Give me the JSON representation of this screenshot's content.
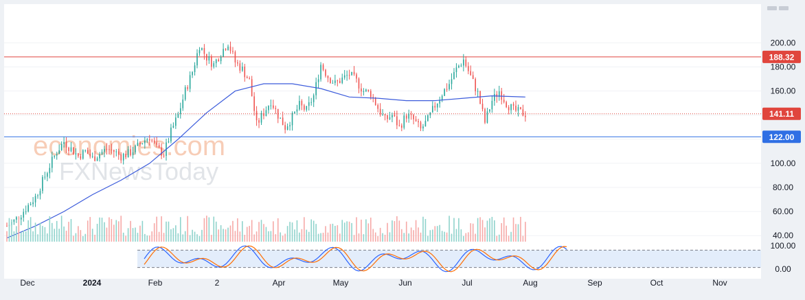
{
  "chart_data": {
    "type": "candlestick",
    "title": "",
    "y_ticks": [
      200,
      180,
      160,
      140,
      120,
      100,
      80,
      60,
      40
    ],
    "y_tick_labels": [
      "200.00",
      "180.00",
      "160.00",
      "",
      "",
      "100.00",
      "80.00",
      "60.00",
      "40.00"
    ],
    "ylim": [
      35,
      215
    ],
    "x_ticks": [
      "Dec",
      "2024",
      "Feb",
      "2",
      "Apr",
      "May",
      "Jun",
      "Jul",
      "Aug",
      "Sep",
      "Oct",
      "Nov"
    ],
    "price_lines": [
      {
        "value": 188.32,
        "label": "188.32",
        "color": "#e0453d"
      },
      {
        "value": 141.11,
        "label": "141.11",
        "color": "#e0453d",
        "style": "dotted"
      },
      {
        "value": 122.0,
        "label": "122.00",
        "color": "#2f6fe4"
      }
    ],
    "series": [
      {
        "name": "",
        "type": "candlestick",
        "approx_points": [
          [
            0,
            48
          ],
          [
            6,
            52
          ],
          [
            12,
            58
          ],
          [
            18,
            65
          ],
          [
            24,
            72
          ],
          [
            30,
            85
          ],
          [
            36,
            98
          ],
          [
            42,
            110
          ],
          [
            48,
            118
          ],
          [
            54,
            112
          ],
          [
            60,
            106
          ],
          [
            66,
            110
          ],
          [
            72,
            104
          ],
          [
            78,
            108
          ],
          [
            84,
            112
          ],
          [
            90,
            110
          ],
          [
            96,
            106
          ],
          [
            102,
            108
          ],
          [
            108,
            112
          ],
          [
            114,
            118
          ],
          [
            120,
            122
          ],
          [
            126,
            112
          ],
          [
            132,
            108
          ],
          [
            138,
            126
          ],
          [
            144,
            140
          ],
          [
            150,
            160
          ],
          [
            156,
            176
          ],
          [
            162,
            198
          ],
          [
            168,
            188
          ],
          [
            174,
            182
          ],
          [
            180,
            192
          ],
          [
            186,
            200
          ],
          [
            192,
            184
          ],
          [
            198,
            178
          ],
          [
            204,
            168
          ],
          [
            210,
            132
          ],
          [
            216,
            142
          ],
          [
            222,
            152
          ],
          [
            228,
            140
          ],
          [
            234,
            130
          ],
          [
            240,
            138
          ],
          [
            246,
            148
          ],
          [
            252,
            144
          ],
          [
            258,
            156
          ],
          [
            264,
            182
          ],
          [
            270,
            172
          ],
          [
            276,
            166
          ],
          [
            282,
            170
          ],
          [
            288,
            174
          ],
          [
            294,
            168
          ],
          [
            300,
            160
          ],
          [
            306,
            158
          ],
          [
            312,
            146
          ],
          [
            318,
            136
          ],
          [
            324,
            140
          ],
          [
            330,
            130
          ],
          [
            336,
            140
          ],
          [
            342,
            136
          ],
          [
            348,
            128
          ],
          [
            354,
            136
          ],
          [
            360,
            148
          ],
          [
            366,
            158
          ],
          [
            372,
            166
          ],
          [
            378,
            178
          ],
          [
            384,
            186
          ],
          [
            390,
            172
          ],
          [
            396,
            158
          ],
          [
            402,
            134
          ],
          [
            408,
            152
          ],
          [
            414,
            160
          ],
          [
            420,
            150
          ],
          [
            426,
            144
          ],
          [
            432,
            142
          ],
          [
            436,
            141
          ]
        ]
      },
      {
        "name": "",
        "type": "moving-average",
        "color": "#3b5bdb",
        "approx_points": [
          [
            0,
            38
          ],
          [
            24,
            48
          ],
          [
            48,
            60
          ],
          [
            72,
            74
          ],
          [
            96,
            86
          ],
          [
            120,
            100
          ],
          [
            144,
            120
          ],
          [
            168,
            142
          ],
          [
            192,
            160
          ],
          [
            216,
            166
          ],
          [
            240,
            166
          ],
          [
            264,
            162
          ],
          [
            288,
            155
          ],
          [
            312,
            154
          ],
          [
            336,
            152
          ],
          [
            360,
            152
          ],
          [
            384,
            154
          ],
          [
            408,
            156
          ],
          [
            436,
            155
          ]
        ]
      }
    ],
    "volume": [
      {
        "index": 300,
        "value": 70
      },
      {
        "index": 312,
        "value": 60
      }
    ],
    "oscillator": {
      "ticks": [
        "100.00",
        "0.00"
      ],
      "band": [
        20,
        80
      ],
      "k_color": "#2962ff",
      "d_color": "#ff6d00"
    }
  },
  "watermark": {
    "line1": "economies.com",
    "line2": "FXNewsToday"
  }
}
